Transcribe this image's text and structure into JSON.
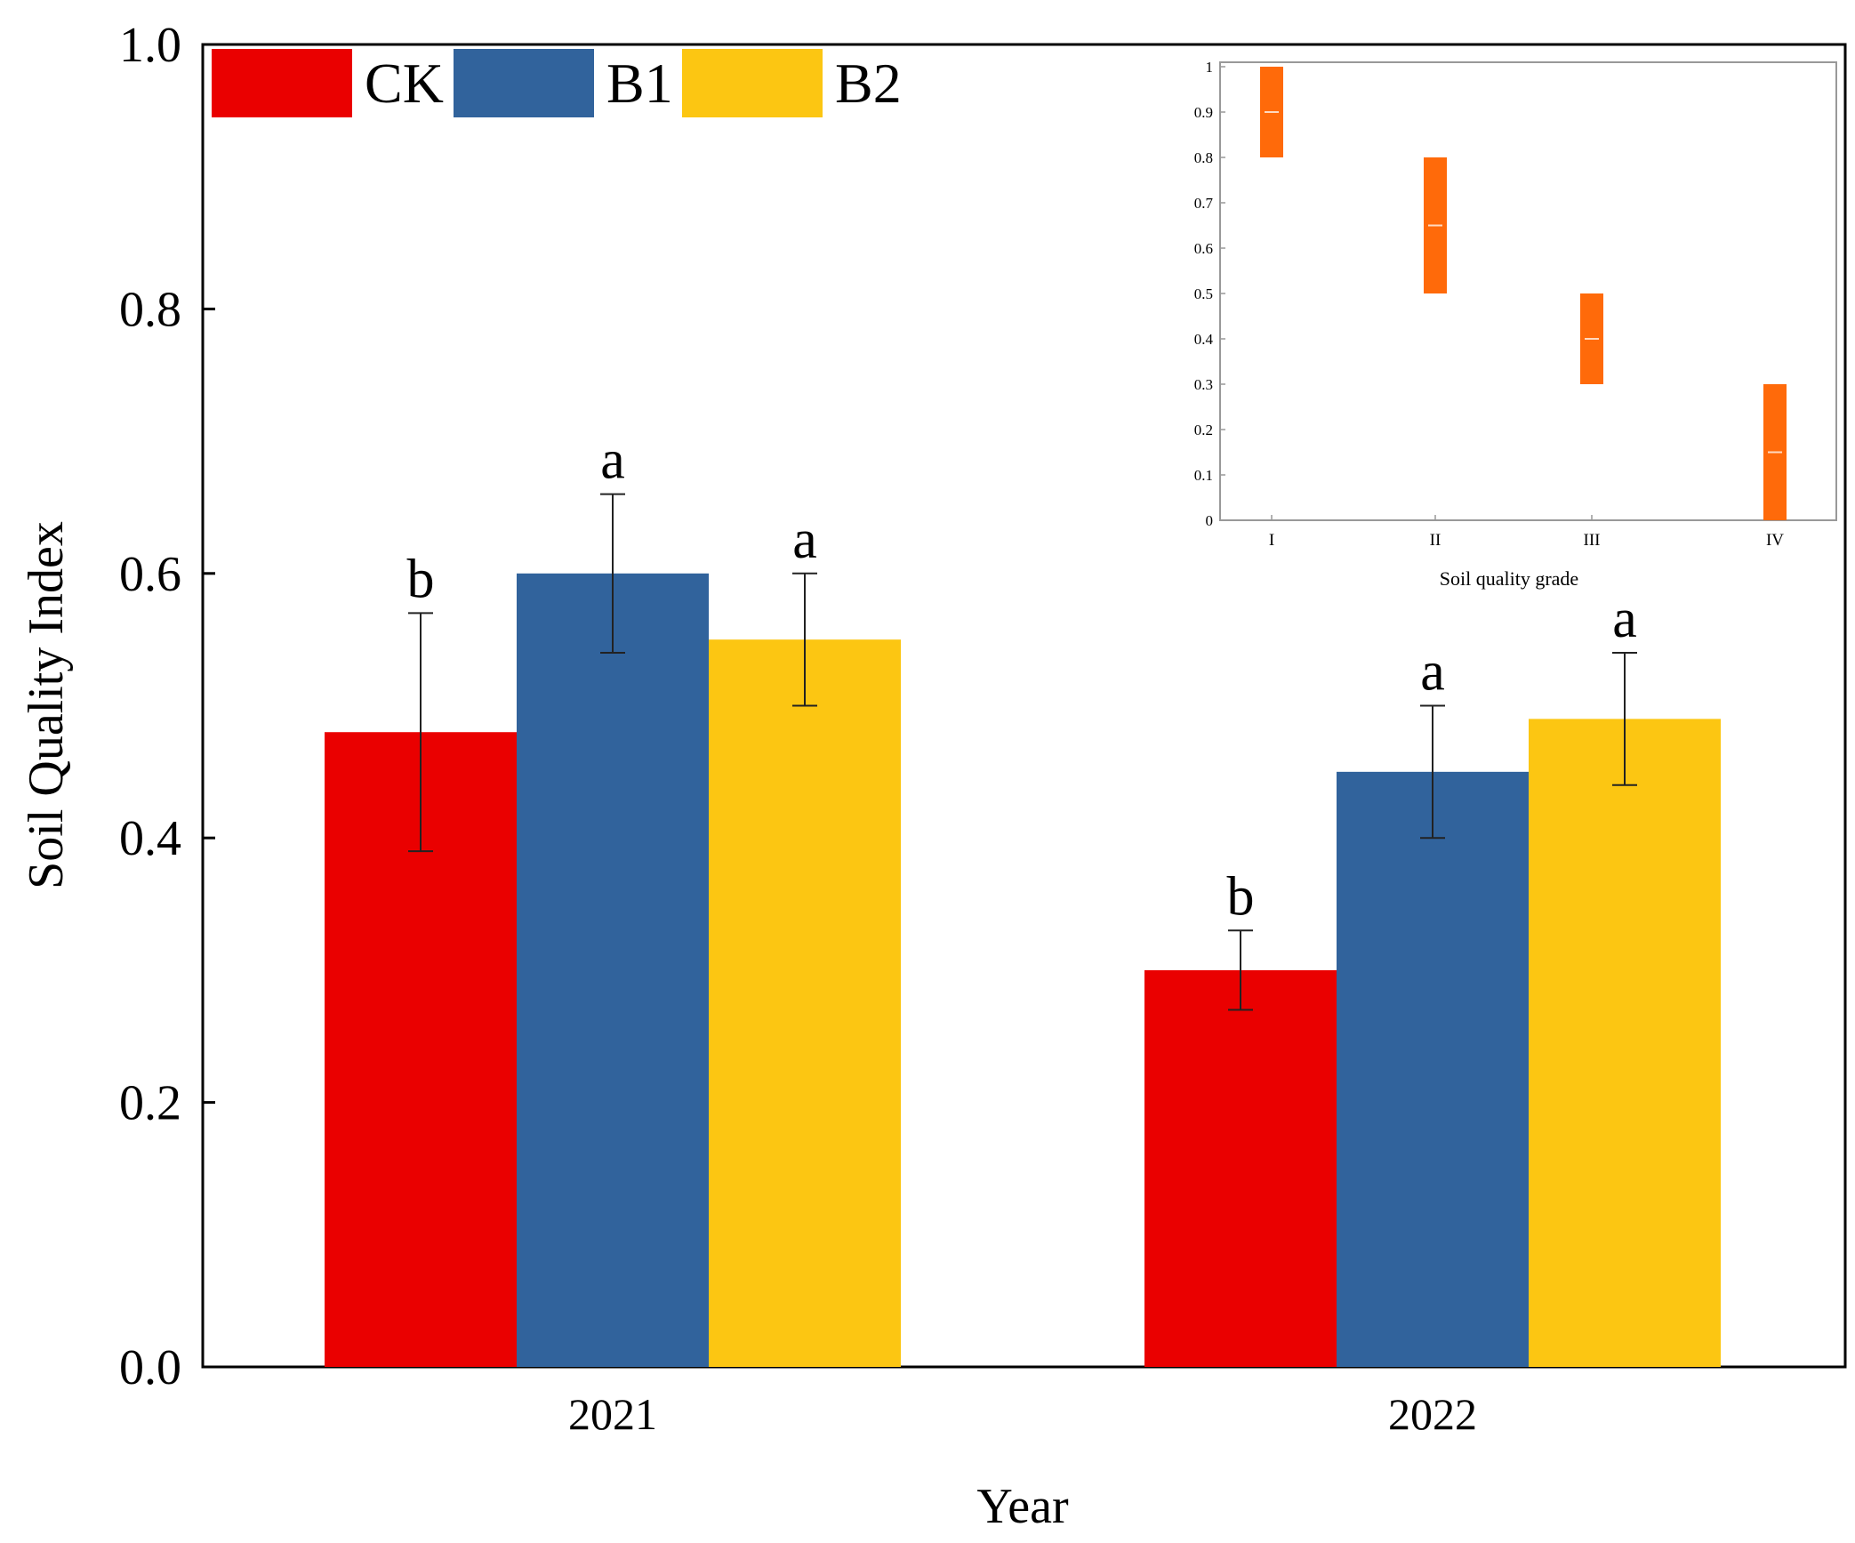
{
  "chart_data": {
    "type": "bar",
    "title": "",
    "xlabel": "Year",
    "ylabel": "Soil Quality Index",
    "ylim": [
      0,
      1.0
    ],
    "yticks": [
      0.0,
      0.2,
      0.4,
      0.6,
      0.8,
      1.0
    ],
    "ytick_labels": [
      "0.0",
      "0.2",
      "0.4",
      "0.6",
      "0.8",
      "1.0"
    ],
    "categories": [
      "2021",
      "2022"
    ],
    "legend_position": "top-left",
    "series": [
      {
        "name": "CK",
        "color": "#ea0000",
        "values": [
          0.48,
          0.3
        ],
        "errors": [
          0.09,
          0.03
        ],
        "letters": [
          "b",
          "b"
        ]
      },
      {
        "name": "B1",
        "color": "#31639c",
        "values": [
          0.6,
          0.45
        ],
        "errors": [
          0.06,
          0.05
        ],
        "letters": [
          "a",
          "a"
        ]
      },
      {
        "name": "B2",
        "color": "#fcc612",
        "values": [
          0.55,
          0.49
        ],
        "errors": [
          0.05,
          0.05
        ],
        "letters": [
          "a",
          "a"
        ]
      }
    ],
    "inset": {
      "type": "floating-bar",
      "position": "top-right",
      "xlabel": "Soil quality grade",
      "ylim": [
        0,
        1
      ],
      "yticks": [
        0,
        0.1,
        0.2,
        0.3,
        0.4,
        0.5,
        0.6,
        0.7,
        0.8,
        0.9,
        1
      ],
      "ytick_labels": [
        "0",
        "0.1",
        "0.2",
        "0.3",
        "0.4",
        "0.5",
        "0.6",
        "0.7",
        "0.8",
        "0.9",
        "1"
      ],
      "categories": [
        "I",
        "II",
        "III",
        "IV"
      ],
      "color": "#ff6a0a",
      "ranges": [
        [
          0.8,
          1.0
        ],
        [
          0.5,
          0.8
        ],
        [
          0.3,
          0.5
        ],
        [
          0.0,
          0.3
        ]
      ],
      "midpoints": [
        0.9,
        0.65,
        0.4,
        0.15
      ]
    }
  }
}
